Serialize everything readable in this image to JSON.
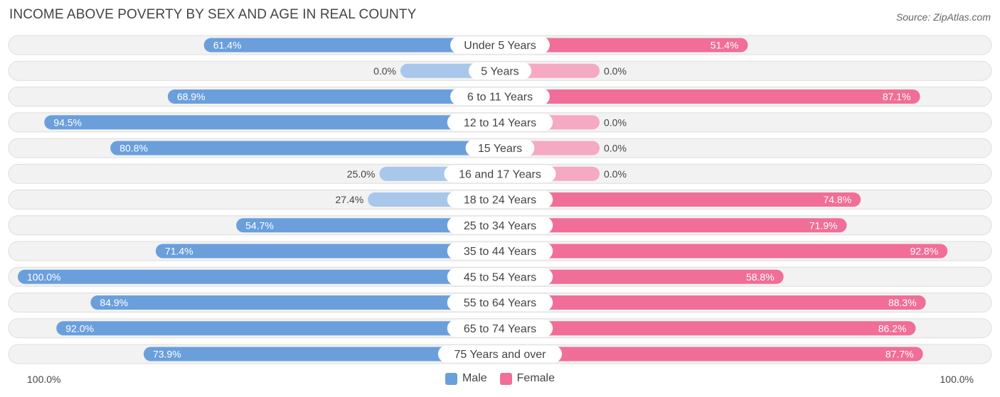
{
  "title": "INCOME ABOVE POVERTY BY SEX AND AGE IN REAL COUNTY",
  "source": "Source: ZipAtlas.com",
  "axis": {
    "left_label": "100.0%",
    "right_label": "100.0%"
  },
  "legend": {
    "male": "Male",
    "female": "Female"
  },
  "colors": {
    "male_strong": "#6a9fdc",
    "male_light": "#a8c7ea",
    "female_strong": "#f06e97",
    "female_light": "#f5a9c2",
    "row_bg": "#f2f2f2",
    "row_border": "#dddddd"
  },
  "chart_data": {
    "type": "bar",
    "orientation": "horizontal-diverging",
    "title": "INCOME ABOVE POVERTY BY SEX AND AGE IN REAL COUNTY",
    "xlim": [
      0,
      100
    ],
    "categories": [
      "Under 5 Years",
      "5 Years",
      "6 to 11 Years",
      "12 to 14 Years",
      "15 Years",
      "16 and 17 Years",
      "18 to 24 Years",
      "25 to 34 Years",
      "35 to 44 Years",
      "45 to 54 Years",
      "55 to 64 Years",
      "65 to 74 Years",
      "75 Years and over"
    ],
    "series": [
      {
        "name": "Male",
        "values": [
          61.4,
          0.0,
          68.9,
          94.5,
          80.8,
          25.0,
          27.4,
          54.7,
          71.4,
          100.0,
          84.9,
          92.0,
          73.9
        ],
        "labels": [
          "61.4%",
          "0.0%",
          "68.9%",
          "94.5%",
          "80.8%",
          "25.0%",
          "27.4%",
          "54.7%",
          "71.4%",
          "100.0%",
          "84.9%",
          "92.0%",
          "73.9%"
        ]
      },
      {
        "name": "Female",
        "values": [
          51.4,
          0.0,
          87.1,
          0.0,
          0.0,
          0.0,
          74.8,
          71.9,
          92.8,
          58.8,
          88.3,
          86.2,
          87.7
        ],
        "labels": [
          "51.4%",
          "0.0%",
          "87.1%",
          "0.0%",
          "0.0%",
          "0.0%",
          "74.8%",
          "71.9%",
          "92.8%",
          "58.8%",
          "88.3%",
          "86.2%",
          "87.7%"
        ]
      }
    ]
  }
}
